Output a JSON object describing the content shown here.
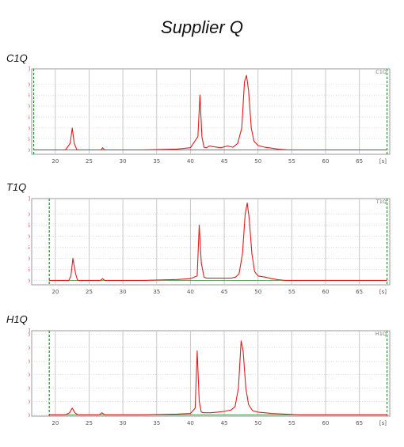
{
  "title": "Supplier Q",
  "colors": {
    "trace": "#e41b1b",
    "tick_text": "#d23030",
    "grid": "#c8c8c8",
    "marker": "#2e8b3a",
    "frame": "#9a9a9a",
    "background": "#ffffff"
  },
  "chart_data": [
    {
      "type": "line",
      "panel_label": "C1Q",
      "sample_tag": "C1Q",
      "y_unit": "[FU]",
      "x_unit": "[s]",
      "xlim": [
        16.5,
        69.5
      ],
      "ylim": [
        -2,
        37
      ],
      "x_ticks": [
        20,
        25,
        30,
        35,
        40,
        45,
        50,
        55,
        60,
        65
      ],
      "y_ticks": [
        0,
        5,
        10,
        15,
        20,
        25,
        30
      ],
      "grid": true,
      "marker_lines_x": [
        16.8,
        69.1
      ],
      "baseline_segments": [
        [
          16.8,
          54.5
        ],
        [
          54.5,
          69.1
        ]
      ],
      "series": [
        {
          "x": [
            16.8,
            21.5,
            22.2,
            22.5,
            22.8,
            23.2,
            24,
            26.8,
            27,
            27.3,
            28,
            33,
            38,
            40,
            41.1,
            41.4,
            41.7,
            42,
            42.4,
            42.8,
            43.5,
            44.5,
            45.5,
            46.3,
            47,
            47.6,
            48.0,
            48.3,
            48.6,
            49.0,
            49.4,
            50,
            51,
            52,
            53,
            54.5,
            69.1
          ],
          "y": [
            0,
            0,
            3,
            10,
            3,
            0,
            0,
            0,
            1,
            0,
            0,
            0,
            0.4,
            1,
            6,
            25,
            6,
            1.2,
            1,
            1.8,
            1.4,
            1,
            1.8,
            1.2,
            3,
            10,
            31,
            34,
            27,
            10,
            4,
            2,
            1.2,
            0.8,
            0.3,
            0,
            0
          ]
        }
      ]
    },
    {
      "type": "line",
      "panel_label": "T1Q",
      "sample_tag": "T1Q",
      "y_unit": "[FU]",
      "x_unit": "[s]",
      "xlim": [
        16.5,
        69.5
      ],
      "ylim": [
        -2,
        37
      ],
      "x_ticks": [
        20,
        25,
        30,
        35,
        40,
        45,
        50,
        55,
        60,
        65
      ],
      "y_ticks": [
        0,
        5,
        10,
        15,
        20,
        25,
        30
      ],
      "grid": true,
      "marker_lines_x": [
        19.1,
        69.1
      ],
      "baseline_segments": [
        [
          19.1,
          69.1
        ]
      ],
      "series": [
        {
          "x": [
            19.1,
            22,
            22.3,
            22.6,
            23,
            23.3,
            24,
            26.7,
            27,
            27.3,
            28,
            33,
            38,
            40,
            41,
            41.3,
            41.6,
            42,
            42.4,
            43,
            44,
            45,
            46,
            46.7,
            47.2,
            47.7,
            48.1,
            48.4,
            48.7,
            49.1,
            49.5,
            50,
            51,
            52,
            53,
            54,
            69.1
          ],
          "y": [
            0,
            0,
            2,
            10,
            3,
            0,
            0,
            0,
            0.8,
            0,
            0,
            0,
            0.4,
            0.8,
            2,
            25,
            8,
            1.5,
            1,
            1,
            1,
            1,
            1,
            1.5,
            3,
            12,
            30,
            35,
            28,
            12,
            4,
            2,
            1.5,
            0.8,
            0.3,
            0,
            0
          ]
        }
      ]
    },
    {
      "type": "line",
      "panel_label": "H1Q",
      "sample_tag": "H1Q",
      "y_unit": "[FU]",
      "x_unit": "[s]",
      "xlim": [
        16.5,
        69.5
      ],
      "ylim": [
        -2,
        125
      ],
      "x_ticks": [
        20,
        25,
        30,
        35,
        40,
        45,
        50,
        55,
        60,
        65
      ],
      "y_ticks": [
        0,
        20,
        40,
        60,
        80,
        100,
        120
      ],
      "grid": true,
      "marker_lines_x": [
        19.1,
        69.1
      ],
      "baseline_segments": [
        [
          19.1,
          56
        ],
        [
          56,
          69.1
        ]
      ],
      "series": [
        {
          "x": [
            19.1,
            21.5,
            22.1,
            22.5,
            22.9,
            23.3,
            24,
            26.5,
            26.9,
            27.3,
            28,
            33,
            38,
            40,
            40.7,
            41,
            41.3,
            41.6,
            42,
            43,
            44,
            45,
            46,
            46.6,
            47.1,
            47.5,
            47.8,
            48.2,
            48.6,
            49.2,
            50,
            51,
            52,
            53,
            54,
            56,
            69.1
          ],
          "y": [
            0,
            0,
            3,
            10,
            3,
            0,
            0,
            0,
            3,
            0,
            0,
            0,
            1,
            2,
            10,
            95,
            20,
            4,
            3,
            3,
            4,
            5,
            7,
            12,
            40,
            110,
            95,
            40,
            15,
            6,
            4,
            3,
            2,
            1.5,
            1,
            0,
            0
          ]
        }
      ]
    }
  ]
}
